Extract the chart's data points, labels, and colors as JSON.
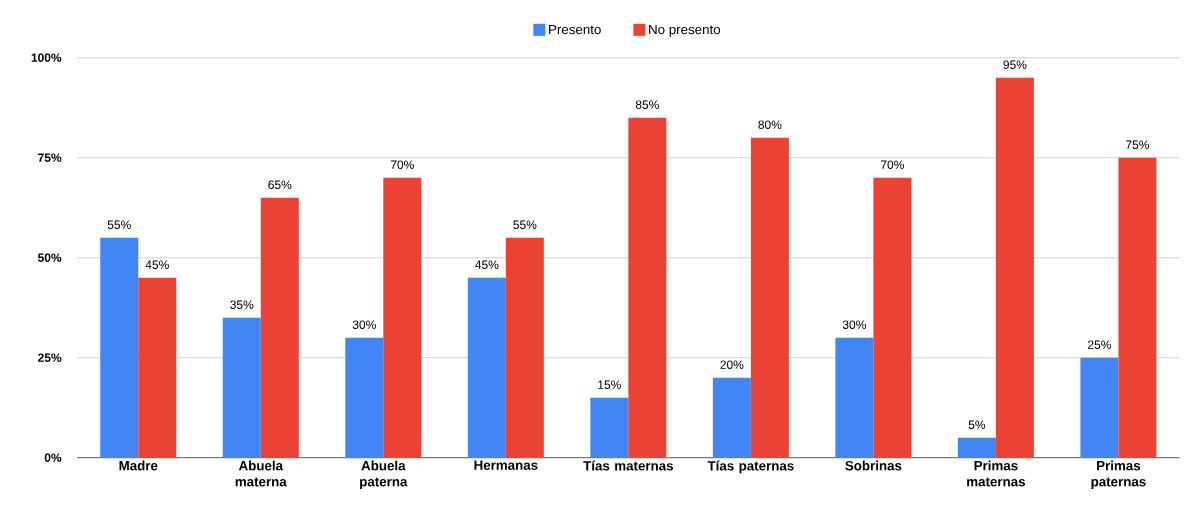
{
  "chart_data": {
    "type": "bar",
    "categories": [
      "Madre",
      "Abuela materna",
      "Abuela paterna",
      "Hermanas",
      "Tías maternas",
      "Tías paternas",
      "Sobrinas",
      "Primas maternas",
      "Primas paternas"
    ],
    "series": [
      {
        "name": "Presento",
        "color": "#4285f4",
        "values": [
          55,
          35,
          30,
          45,
          15,
          20,
          30,
          5,
          25
        ],
        "value_labels": [
          "55%",
          "35%",
          "30%",
          "45%",
          "15%",
          "20%",
          "30%",
          "5%",
          "25%"
        ]
      },
      {
        "name": "No presento",
        "color": "#ea4335",
        "values": [
          45,
          65,
          70,
          55,
          85,
          80,
          70,
          95,
          75
        ],
        "value_labels": [
          "45%",
          "65%",
          "70%",
          "55%",
          "85%",
          "80%",
          "70%",
          "95%",
          "75%"
        ]
      }
    ],
    "ylim": [
      0,
      100
    ],
    "yticks": [
      {
        "value": 0,
        "label": "0%"
      },
      {
        "value": 25,
        "label": "25%"
      },
      {
        "value": 50,
        "label": "50%"
      },
      {
        "value": 75,
        "label": "75%"
      },
      {
        "value": 100,
        "label": "100%"
      }
    ],
    "grid": "y",
    "legend": "top"
  }
}
